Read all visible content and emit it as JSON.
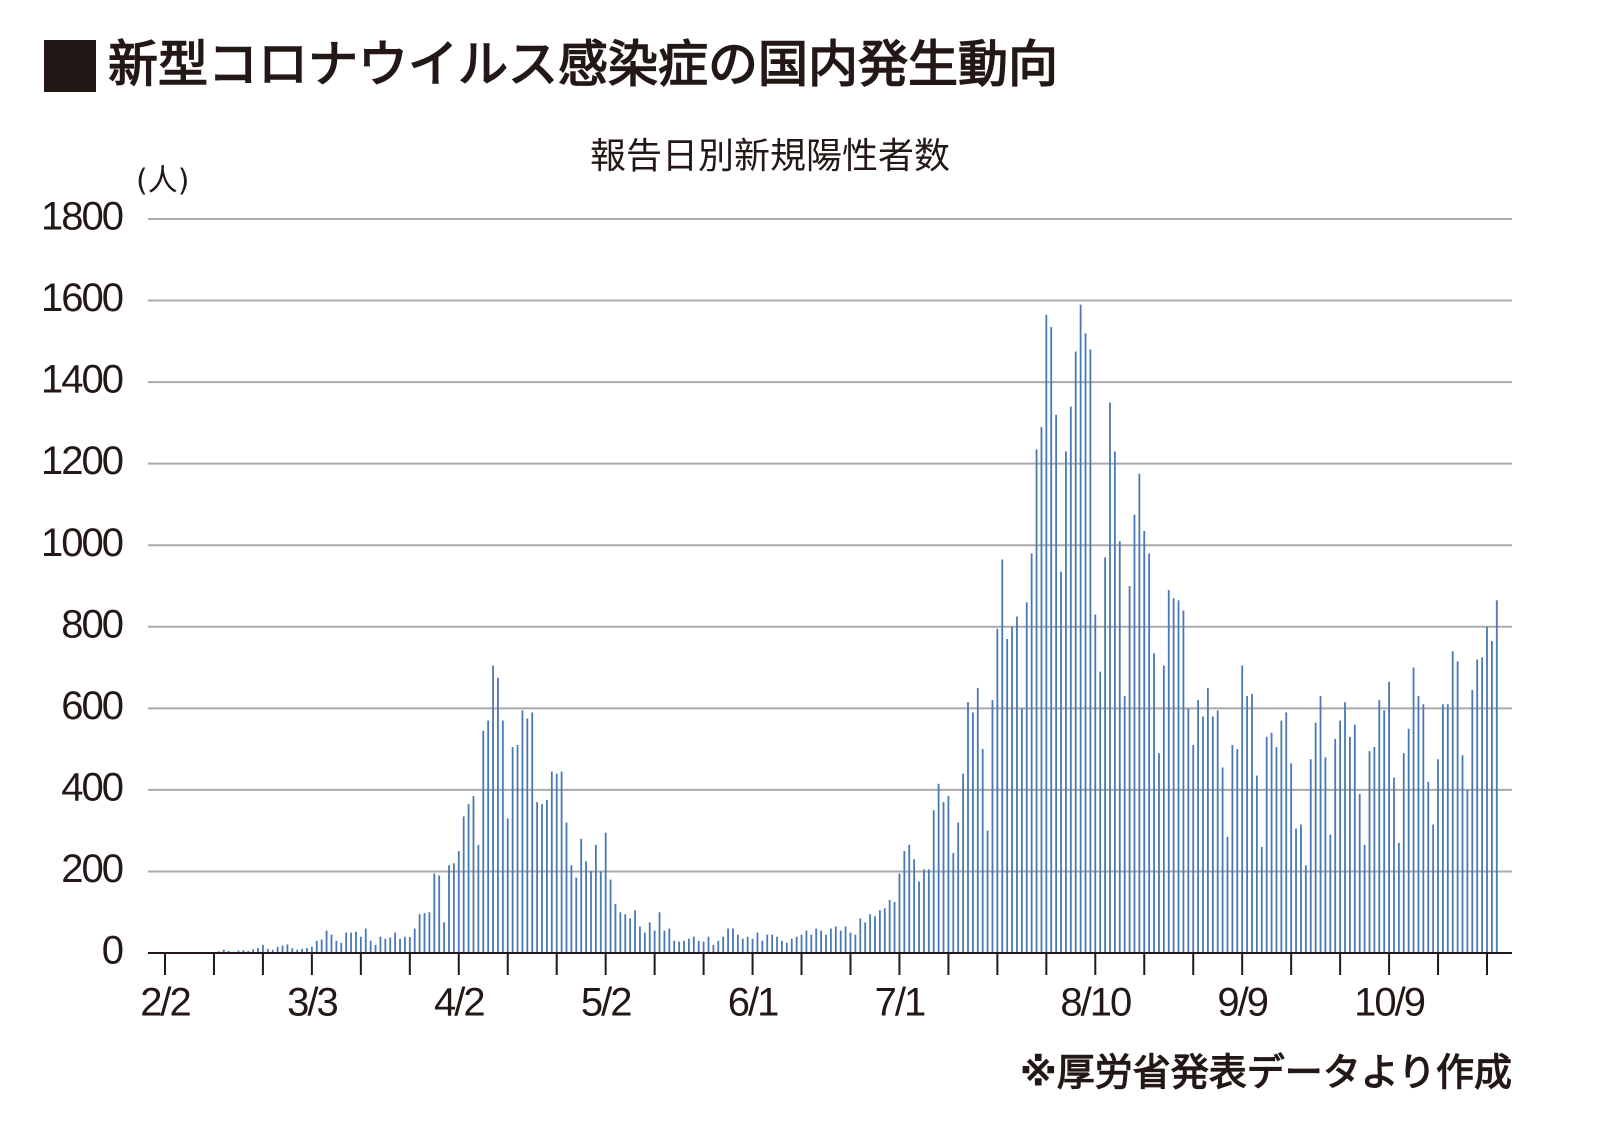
{
  "chart_data": {
    "type": "bar",
    "title": "新型コロナウイルス感染症の国内発生動向",
    "subtitle": "報告日別新規陽性者数",
    "y_label": "(人)",
    "note": "※厚労省発表データより作成",
    "categories": [
      "2/2",
      null,
      null,
      null,
      null,
      null,
      null,
      null,
      null,
      null,
      null,
      null,
      null,
      null,
      null,
      null,
      null,
      null,
      null,
      null,
      null,
      null,
      null,
      null,
      null,
      null,
      null,
      null,
      null,
      null,
      "3/3",
      null,
      null,
      null,
      null,
      null,
      null,
      null,
      null,
      null,
      null,
      null,
      null,
      null,
      null,
      null,
      null,
      null,
      null,
      null,
      null,
      null,
      null,
      null,
      null,
      null,
      null,
      null,
      null,
      null,
      "4/2",
      null,
      null,
      null,
      null,
      null,
      null,
      null,
      null,
      null,
      null,
      null,
      null,
      null,
      null,
      null,
      null,
      null,
      null,
      null,
      null,
      null,
      null,
      null,
      null,
      null,
      null,
      null,
      null,
      null,
      "5/2",
      null,
      null,
      null,
      null,
      null,
      null,
      null,
      null,
      null,
      null,
      null,
      null,
      null,
      null,
      null,
      null,
      null,
      null,
      null,
      null,
      null,
      null,
      null,
      null,
      null,
      null,
      null,
      null,
      null,
      "6/1",
      null,
      null,
      null,
      null,
      null,
      null,
      null,
      null,
      null,
      null,
      null,
      null,
      null,
      null,
      null,
      null,
      null,
      null,
      null,
      null,
      null,
      null,
      null,
      null,
      null,
      null,
      null,
      null,
      null,
      "7/1",
      null,
      null,
      null,
      null,
      null,
      null,
      null,
      null,
      null,
      null,
      null,
      null,
      null,
      null,
      null,
      null,
      null,
      null,
      null,
      null,
      null,
      null,
      null,
      null,
      null,
      null,
      null,
      null,
      null,
      null,
      null,
      null,
      null,
      null,
      null,
      null,
      null,
      null,
      null,
      "8/10",
      null,
      null,
      null,
      null,
      null,
      null,
      null,
      null,
      null,
      null,
      null,
      null,
      null,
      null,
      null,
      null,
      null,
      null,
      null,
      null,
      null,
      null,
      null,
      null,
      null,
      null,
      null,
      null,
      null,
      "9/9",
      null,
      null,
      null,
      null,
      null,
      null,
      null,
      null,
      null,
      null,
      null,
      null,
      null,
      null,
      null,
      null,
      null,
      null,
      null,
      null,
      null,
      null,
      null,
      null,
      null,
      null,
      null,
      null,
      null,
      "10/9",
      null,
      null,
      null,
      null,
      null,
      null,
      null,
      null,
      null,
      null,
      null,
      null,
      null,
      null,
      null,
      null,
      null,
      null,
      null,
      null,
      null,
      null
    ],
    "values": [
      0,
      0,
      0,
      1,
      0,
      0,
      0,
      0,
      0,
      0,
      0,
      4,
      8,
      5,
      3,
      6,
      7,
      5,
      9,
      12,
      20,
      10,
      8,
      15,
      18,
      21,
      12,
      8,
      10,
      12,
      15,
      30,
      33,
      55,
      45,
      30,
      25,
      50,
      50,
      52,
      40,
      60,
      30,
      20,
      40,
      35,
      38,
      50,
      35,
      40,
      39,
      60,
      95,
      98,
      100,
      195,
      190,
      75,
      215,
      220,
      250,
      335,
      365,
      385,
      265,
      545,
      570,
      705,
      675,
      570,
      330,
      505,
      510,
      595,
      575,
      590,
      370,
      365,
      375,
      445,
      440,
      445,
      320,
      215,
      185,
      280,
      225,
      200,
      265,
      200,
      295,
      180,
      120,
      100,
      95,
      85,
      105,
      65,
      50,
      75,
      55,
      100,
      55,
      60,
      30,
      28,
      30,
      35,
      40,
      30,
      28,
      40,
      20,
      30,
      40,
      60,
      60,
      45,
      35,
      40,
      35,
      50,
      30,
      45,
      45,
      40,
      30,
      25,
      35,
      40,
      45,
      55,
      45,
      60,
      55,
      45,
      60,
      65,
      55,
      65,
      50,
      45,
      85,
      75,
      95,
      90,
      105,
      110,
      130,
      125,
      195,
      250,
      265,
      230,
      175,
      205,
      205,
      350,
      415,
      370,
      385,
      245,
      320,
      440,
      615,
      590,
      650,
      500,
      300,
      620,
      795,
      965,
      770,
      800,
      825,
      600,
      860,
      980,
      1235,
      1290,
      1565,
      1535,
      1320,
      935,
      1230,
      1340,
      1475,
      1590,
      1520,
      1480,
      830,
      690,
      970,
      1350,
      1230,
      1010,
      630,
      900,
      1075,
      1175,
      1035,
      980,
      735,
      490,
      705,
      890,
      870,
      865,
      840,
      600,
      510,
      620,
      580,
      650,
      580,
      595,
      455,
      285,
      510,
      500,
      705,
      630,
      635,
      435,
      260,
      530,
      540,
      505,
      570,
      590,
      465,
      305,
      315,
      215,
      475,
      565,
      630,
      480,
      290,
      525,
      570,
      615,
      530,
      560,
      390,
      265,
      495,
      505,
      620,
      595,
      665,
      430,
      270,
      490,
      550,
      700,
      630,
      610,
      420,
      315,
      475,
      610,
      610,
      740,
      715,
      485,
      400,
      645,
      720,
      725,
      800,
      765,
      865
    ],
    "color": "#4a78b5",
    "ylim": [
      0,
      1800
    ],
    "yticks": [
      0,
      200,
      400,
      600,
      800,
      1000,
      1200,
      1400,
      1600,
      1800
    ],
    "grid": true
  }
}
